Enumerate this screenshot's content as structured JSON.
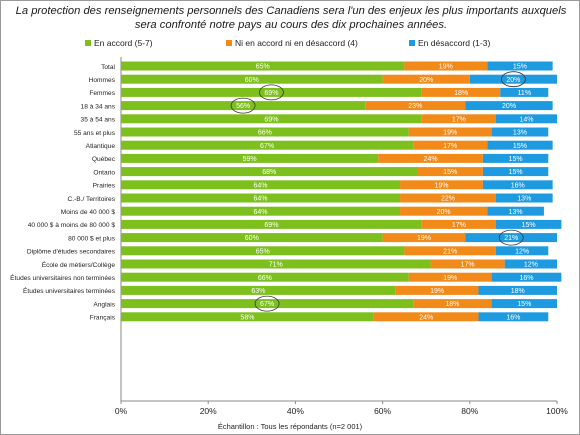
{
  "title": "La protection des renseignements personnels des Canadiens sera l'un des enjeux les plus importants auxquels sera confronté notre pays au cours des dix prochaines années.",
  "caption": "Échantillon : Tous les répondants (n=2 001)",
  "colors": {
    "accord": "#7dc01e",
    "neutre": "#f28a1a",
    "desaccord": "#1e9be0",
    "label": "#ffffff"
  },
  "legend": [
    {
      "name": "En accord (5-7)",
      "color": "#7dc01e"
    },
    {
      "name": "Ni en accord ni en désaccord (4)",
      "color": "#f28a1a"
    },
    {
      "name": "En désaccord (1-3)",
      "color": "#1e9be0"
    }
  ],
  "chart_data": {
    "type": "bar",
    "orientation": "horizontal",
    "stacked": true,
    "xlim": [
      0,
      100
    ],
    "x_ticks": [
      "0%",
      "20%",
      "40%",
      "60%",
      "80%",
      "100%"
    ],
    "grid": false,
    "legend_position": "top",
    "categories": [
      "Total",
      "Hommes",
      "Femmes",
      "18 à 34 ans",
      "35 à 54 ans",
      "55 ans et plus",
      "Atlantique",
      "Québec",
      "Ontario",
      "Prairies",
      "C.-B./ Territoires",
      "Moins de 40 000 $",
      "40 000 $ à moins de 80 000 $",
      "80 000 $ et plus",
      "Diplôme d'études secondaires",
      "École de métiers/Collège",
      "Études universitaires non terminées",
      "Études universitaires terminées",
      "Anglais",
      "Français"
    ],
    "groups": [
      [
        0
      ],
      [
        1,
        2
      ],
      [
        3,
        4,
        5
      ],
      [
        6,
        7,
        8,
        9,
        10
      ],
      [
        11,
        12,
        13
      ],
      [
        14,
        15,
        16,
        17
      ],
      [
        18,
        19
      ]
    ],
    "series": [
      {
        "name": "En accord (5-7)",
        "values": [
          65,
          60,
          69,
          56,
          69,
          66,
          67,
          59,
          68,
          64,
          64,
          64,
          69,
          60,
          65,
          71,
          66,
          63,
          67,
          58
        ]
      },
      {
        "name": "Ni en accord ni en désaccord (4)",
        "values": [
          19,
          20,
          18,
          23,
          17,
          19,
          17,
          24,
          15,
          19,
          22,
          20,
          17,
          19,
          21,
          17,
          19,
          19,
          18,
          24
        ]
      },
      {
        "name": "En désaccord (1-3)",
        "values": [
          15,
          20,
          11,
          20,
          14,
          13,
          15,
          15,
          15,
          16,
          13,
          13,
          15,
          21,
          12,
          12,
          16,
          18,
          15,
          16
        ]
      }
    ],
    "labels": [
      [
        "65%",
        "19%",
        "15%"
      ],
      [
        "60%",
        "20%",
        "20%"
      ],
      [
        "69%",
        "18%",
        "11%"
      ],
      [
        "56%",
        "23%",
        "20%"
      ],
      [
        "69%",
        "17%",
        "14%"
      ],
      [
        "66%",
        "19%",
        "13%"
      ],
      [
        "67%",
        "17%",
        "15%"
      ],
      [
        "59%",
        "24%",
        "15%"
      ],
      [
        "68%",
        "15%",
        "15%"
      ],
      [
        "64%",
        "19%",
        "16%"
      ],
      [
        "64%",
        "22%",
        "13%"
      ],
      [
        "64%",
        "20%",
        "13%"
      ],
      [
        "69%",
        "17%",
        "15%"
      ],
      [
        "60%",
        "19%",
        "21%"
      ],
      [
        "65%",
        "21%",
        "12%"
      ],
      [
        "71%",
        "17%",
        "12%"
      ],
      [
        "66%",
        "19%",
        "16%"
      ],
      [
        "63%",
        "19%",
        "18%"
      ],
      [
        "67%",
        "18%",
        "15%"
      ],
      [
        "58%",
        "24%",
        "16%"
      ]
    ],
    "circled": [
      {
        "category": "Hommes",
        "series": "En désaccord (1-3)"
      },
      {
        "category": "Femmes",
        "series": "En accord (5-7)"
      },
      {
        "category": "18 à 34 ans",
        "series": "En accord (5-7)"
      },
      {
        "category": "80 000 $ et plus",
        "series": "En désaccord (1-3)"
      },
      {
        "category": "Anglais",
        "series": "En accord (5-7)"
      }
    ]
  }
}
